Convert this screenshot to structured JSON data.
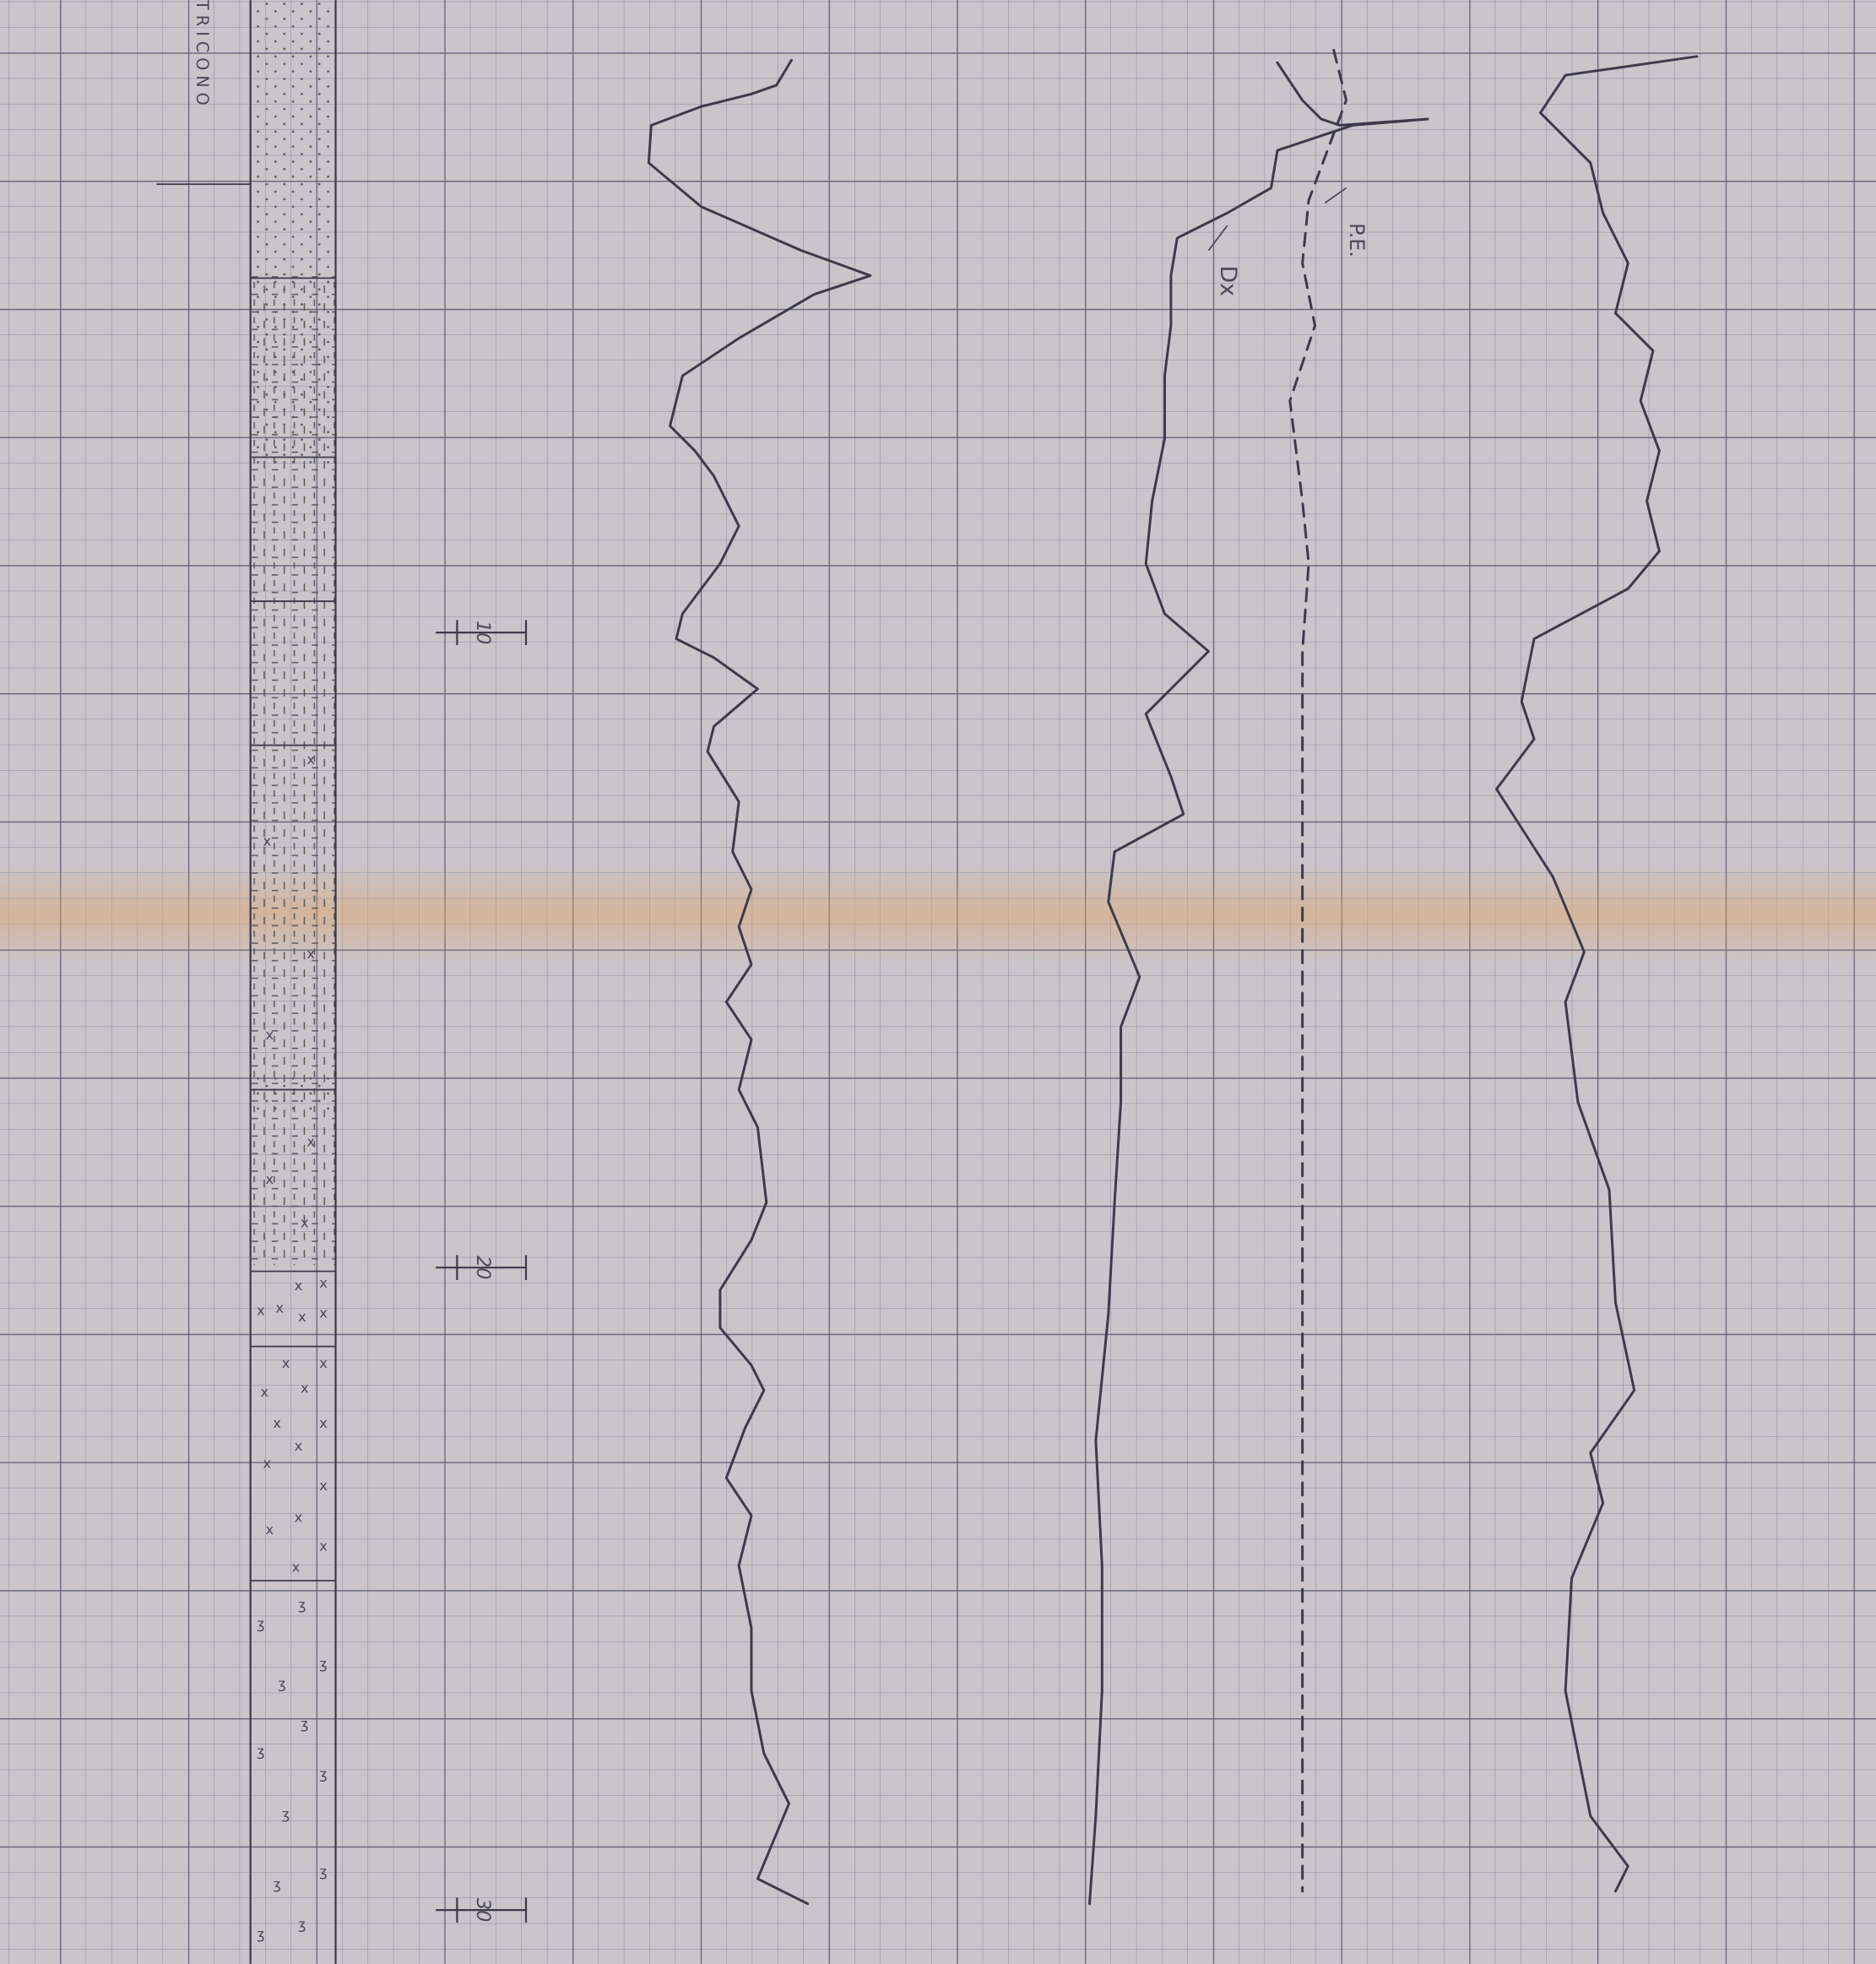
{
  "bit_label": "TRICONO",
  "depth_marks": [
    10,
    20,
    30
  ],
  "curve_labels": {
    "dx": "Dx",
    "pe": "P.E."
  }
}
